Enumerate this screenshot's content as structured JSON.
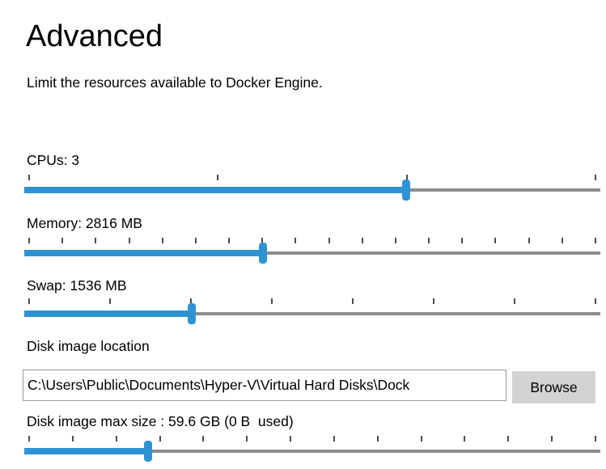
{
  "page": {
    "title": "Advanced",
    "description": "Limit the resources available to Docker Engine."
  },
  "colors": {
    "accent_blue": "#2e93d5",
    "track_gray": "#8d8d8d",
    "button_gray": "#d3d3d3"
  },
  "sliders": {
    "cpus": {
      "label": "CPUs: 3",
      "value": 3,
      "unit": "cpus",
      "tick_count": 4,
      "fill_percent": 66.3
    },
    "memory": {
      "label": "Memory: 2816 MB",
      "value": 2816,
      "unit": "MB",
      "tick_count": 18,
      "fill_percent": 41.4
    },
    "swap": {
      "label": "Swap: 1536 MB",
      "value": 1536,
      "unit": "MB",
      "tick_count": 8,
      "fill_percent": 29.1
    },
    "disk": {
      "label": "Disk image max size : 59.6 GB (0 B  used)",
      "value": "59.6 GB",
      "used": "0 B",
      "tick_count": 14,
      "fill_percent": 21.5
    }
  },
  "disk_location": {
    "label": "Disk image location",
    "value": "C:\\Users\\Public\\Documents\\Hyper-V\\Virtual Hard Disks\\Dock",
    "browse_label": "Browse"
  }
}
